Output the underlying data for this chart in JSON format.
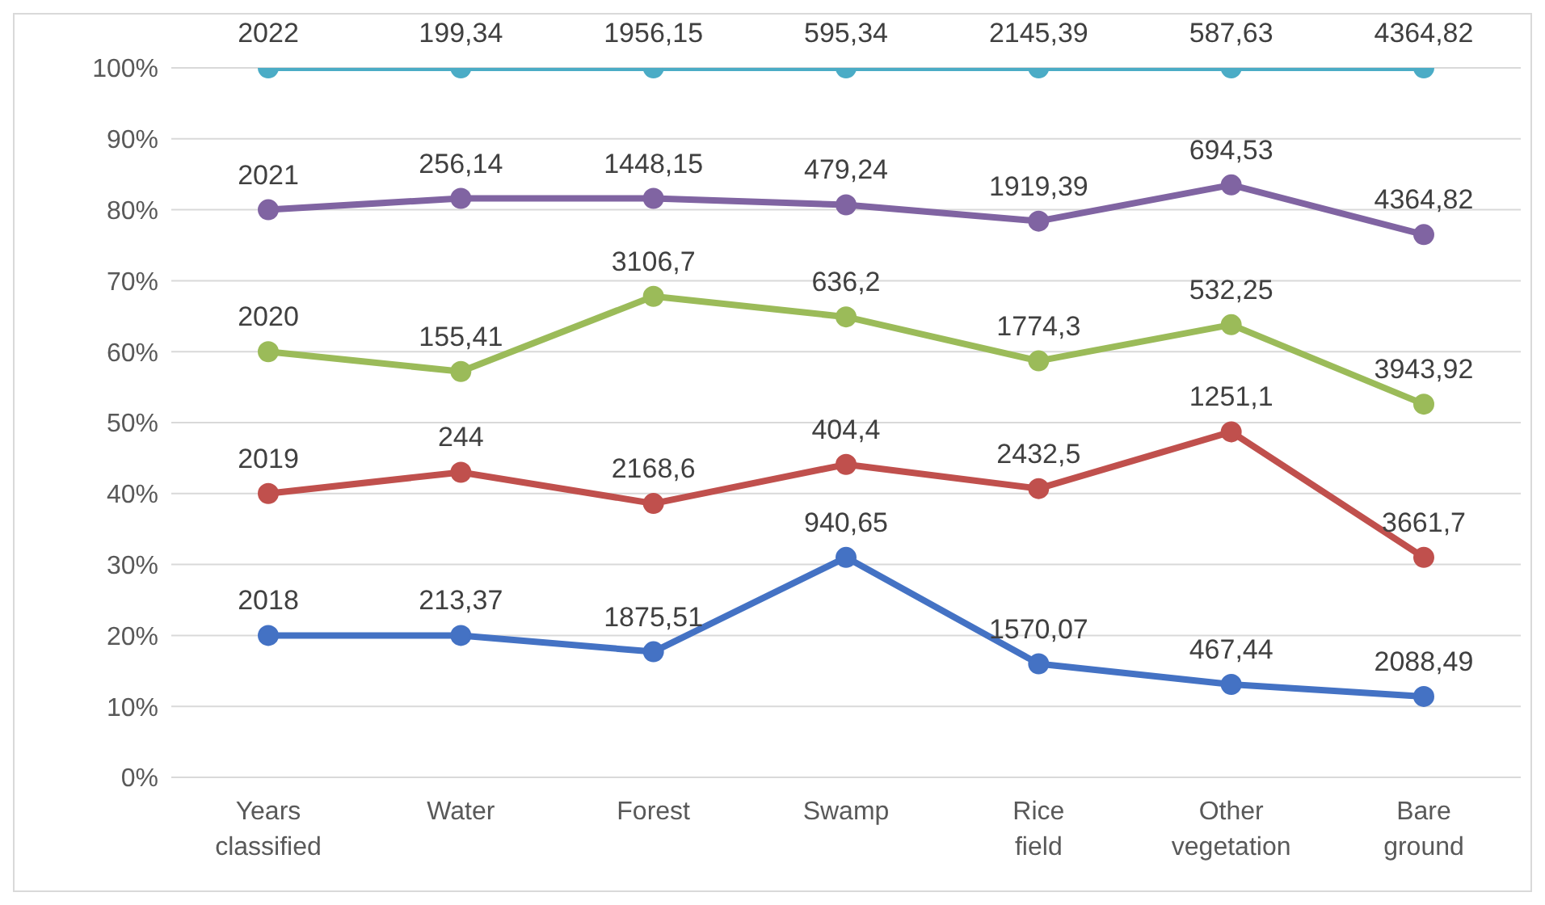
{
  "chart_data": {
    "type": "line",
    "categories": [
      "Years classified",
      "Water",
      "Forest",
      "Swamp",
      "Rice field",
      "Other vegetation",
      "Bare ground"
    ],
    "series": [
      {
        "color": "#4472c4",
        "values": [
          20,
          20,
          17.7,
          31,
          16,
          13.1,
          11.4
        ]
      },
      {
        "color": "#c0504d",
        "values": [
          40,
          43,
          38.6,
          44.1,
          40.7,
          48.7,
          31
        ]
      },
      {
        "color": "#9bbb59",
        "values": [
          60,
          57.2,
          67.8,
          64.9,
          58.7,
          63.8,
          52.6
        ]
      },
      {
        "color": "#8064a2",
        "values": [
          80,
          81.6,
          81.6,
          80.7,
          78.4,
          83.5,
          76.5
        ]
      },
      {
        "color": "#4bacc6",
        "values": [
          100,
          100,
          100,
          100,
          100,
          100,
          100
        ]
      }
    ],
    "annotations": [
      {
        "text": "2018",
        "x": "Years classified",
        "y": 20
      },
      {
        "text": "213,37",
        "x": "Water",
        "y": 20
      },
      {
        "text": "1875,51",
        "x": "Forest",
        "y": 17.7
      },
      {
        "text": "940,65",
        "x": "Swamp",
        "y": 31
      },
      {
        "text": "1570,07",
        "x": "Rice field",
        "y": 16
      },
      {
        "text": "467,44",
        "x": "Other vegetation",
        "y": 13.1
      },
      {
        "text": "2088,49",
        "x": "Bare ground",
        "y": 11.4
      },
      {
        "text": "2019",
        "x": "Years classified",
        "y": 40
      },
      {
        "text": "244",
        "x": "Water",
        "y": 43
      },
      {
        "text": "2168,6",
        "x": "Forest",
        "y": 38.6
      },
      {
        "text": "404,4",
        "x": "Swamp",
        "y": 44.1
      },
      {
        "text": "2432,5",
        "x": "Rice field",
        "y": 40.7
      },
      {
        "text": "1251,1",
        "x": "Other vegetation",
        "y": 48.7
      },
      {
        "text": "3661,7",
        "x": "Bare ground",
        "y": 31
      },
      {
        "text": "2020",
        "x": "Years classified",
        "y": 60
      },
      {
        "text": "155,41",
        "x": "Water",
        "y": 57.2
      },
      {
        "text": "3106,7",
        "x": "Forest",
        "y": 67.8
      },
      {
        "text": "636,2",
        "x": "Swamp",
        "y": 64.9
      },
      {
        "text": "1774,3",
        "x": "Rice field",
        "y": 58.7
      },
      {
        "text": "532,25",
        "x": "Other vegetation",
        "y": 63.8
      },
      {
        "text": "3943,92",
        "x": "Bare ground",
        "y": 52.6
      },
      {
        "text": "2021",
        "x": "Years classified",
        "y": 80
      },
      {
        "text": "256,14",
        "x": "Water",
        "y": 81.6
      },
      {
        "text": "1448,15",
        "x": "Forest",
        "y": 81.6
      },
      {
        "text": "479,24",
        "x": "Swamp",
        "y": 80.7
      },
      {
        "text": "1919,39",
        "x": "Rice field",
        "y": 78.4
      },
      {
        "text": "694,53",
        "x": "Other vegetation",
        "y": 83.5
      },
      {
        "text": "4364,82",
        "x": "Bare ground",
        "y": 76.5
      },
      {
        "text": "2022",
        "x": "Years classified",
        "y": 100
      },
      {
        "text": "199,34",
        "x": "Water",
        "y": 100
      },
      {
        "text": "1956,15",
        "x": "Forest",
        "y": 100
      },
      {
        "text": "595,34",
        "x": "Swamp",
        "y": 100
      },
      {
        "text": "2145,39",
        "x": "Rice field",
        "y": 100
      },
      {
        "text": "587,63",
        "x": "Other vegetation",
        "y": 100
      },
      {
        "text": "4364,82",
        "x": "Bare ground",
        "y": 100
      }
    ],
    "ylim": [
      0,
      100
    ],
    "yticks": [
      {
        "value": 0,
        "label": "0%"
      },
      {
        "value": 10,
        "label": "10%"
      },
      {
        "value": 20,
        "label": "20%"
      },
      {
        "value": 30,
        "label": "30%"
      },
      {
        "value": 40,
        "label": "40%"
      },
      {
        "value": 50,
        "label": "50%"
      },
      {
        "value": 60,
        "label": "60%"
      },
      {
        "value": 70,
        "label": "70%"
      },
      {
        "value": 80,
        "label": "80%"
      },
      {
        "value": 90,
        "label": "90%"
      },
      {
        "value": 100,
        "label": "100%"
      }
    ],
    "grid": "y",
    "legend": false,
    "marker": "circle",
    "line_style": "solid"
  }
}
